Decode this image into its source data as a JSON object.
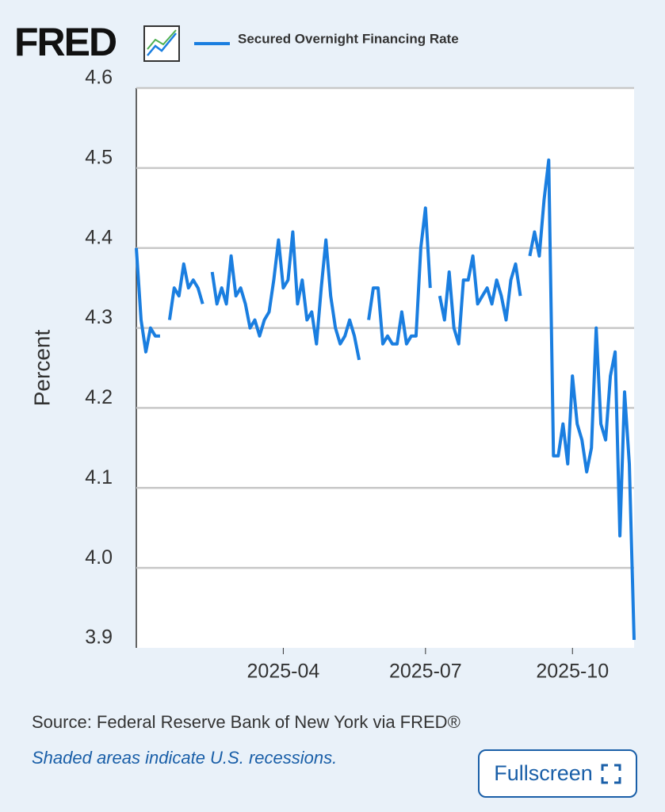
{
  "logo": "FRED",
  "source": "Source: Federal Reserve Bank of New York via FRED®",
  "note": "Shaded areas indicate U.S. recessions.",
  "button": "Fullscreen",
  "chart_data": {
    "type": "line",
    "ylabel": "Percent",
    "categories": [
      null,
      null,
      null,
      null,
      null,
      null,
      null,
      null,
      null,
      null,
      null,
      null,
      null,
      null,
      null,
      null,
      null,
      null,
      null,
      null,
      null,
      null,
      null,
      null,
      null,
      null,
      null,
      null,
      null,
      null,
      null,
      "2025-04",
      null,
      null,
      null,
      null,
      null,
      null,
      null,
      null,
      null,
      null,
      null,
      null,
      null,
      null,
      null,
      null,
      null,
      null,
      null,
      null,
      null,
      null,
      null,
      null,
      null,
      null,
      null,
      null,
      null,
      "2025-07",
      null,
      null,
      null,
      null,
      null,
      null,
      null,
      null,
      null,
      null,
      null,
      null,
      null,
      null,
      null,
      null,
      null,
      null,
      null,
      null,
      null,
      null,
      null,
      null,
      null,
      null,
      null,
      null,
      null,
      null,
      "2025-10",
      null,
      null,
      null,
      null,
      null,
      null,
      null,
      null,
      null,
      null,
      null,
      null,
      null
    ],
    "series": [
      {
        "name": "Secured Overnight Financing Rate",
        "color": "#1a7ee0",
        "values": [
          4.4,
          4.31,
          4.27,
          4.3,
          4.29,
          4.29,
          null,
          4.31,
          4.35,
          4.34,
          4.38,
          4.35,
          4.36,
          4.35,
          4.33,
          null,
          4.37,
          4.33,
          4.35,
          4.33,
          4.39,
          4.34,
          4.35,
          4.33,
          4.3,
          4.31,
          4.29,
          4.31,
          4.32,
          4.36,
          4.41,
          4.35,
          4.36,
          4.42,
          4.33,
          4.36,
          4.31,
          4.32,
          4.28,
          4.35,
          4.41,
          4.34,
          4.3,
          4.28,
          4.29,
          4.31,
          4.29,
          4.26,
          null,
          4.31,
          4.35,
          4.35,
          4.28,
          4.29,
          4.28,
          4.28,
          4.32,
          4.28,
          4.29,
          4.29,
          4.4,
          4.45,
          4.35,
          null,
          4.34,
          4.31,
          4.37,
          4.3,
          4.28,
          4.36,
          4.36,
          4.39,
          4.33,
          4.34,
          4.35,
          4.33,
          4.36,
          4.34,
          4.31,
          4.36,
          4.38,
          4.34,
          null,
          4.39,
          4.42,
          4.39,
          4.46,
          4.51,
          4.14,
          4.14,
          4.18,
          4.13,
          4.24,
          4.18,
          4.16,
          4.12,
          4.15,
          4.3,
          4.18,
          4.16,
          4.24,
          4.27,
          4.04,
          4.22,
          4.13,
          3.91
        ]
      }
    ],
    "ylim": [
      3.9,
      4.6
    ],
    "yticks": [
      3.9,
      {
        "value": 4,
        "label": "4.0"
      },
      4.1,
      4.2,
      4.3,
      4.4,
      4.5,
      4.6
    ],
    "grid": true
  }
}
